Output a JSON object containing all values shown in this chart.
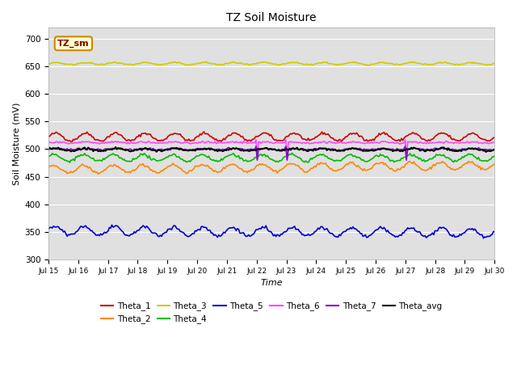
{
  "title": "TZ Soil Moisture",
  "xlabel": "Time",
  "ylabel": "Soil Moisture (mV)",
  "xlim": [
    0,
    360
  ],
  "ylim": [
    300,
    720
  ],
  "yticks": [
    300,
    350,
    400,
    450,
    500,
    550,
    600,
    650,
    700
  ],
  "xtick_labels": [
    "Jul 15",
    "Jul 16",
    "Jul 17",
    "Jul 18",
    "Jul 19",
    "Jul 20",
    "Jul 21",
    "Jul 22",
    "Jul 23",
    "Jul 24",
    "Jul 25",
    "Jul 26",
    "Jul 27",
    "Jul 28",
    "Jul 29",
    "Jul 30"
  ],
  "xtick_positions": [
    0,
    24,
    48,
    72,
    96,
    120,
    144,
    168,
    192,
    216,
    240,
    264,
    288,
    312,
    336,
    360
  ],
  "bg_color": "#e0e0e0",
  "fig_color": "#ffffff",
  "grid_color": "#ffffff",
  "series_colors": {
    "Theta_1": "#cc0000",
    "Theta_2": "#ff8800",
    "Theta_3": "#cccc00",
    "Theta_4": "#00bb00",
    "Theta_5": "#0000cc",
    "Theta_6": "#ff44ff",
    "Theta_7": "#8800cc",
    "Theta_avg": "#000000"
  },
  "annotation_box": {
    "text": "TZ_sm",
    "facecolor": "#ffffcc",
    "edgecolor": "#cc8800",
    "textcolor": "#880000"
  }
}
